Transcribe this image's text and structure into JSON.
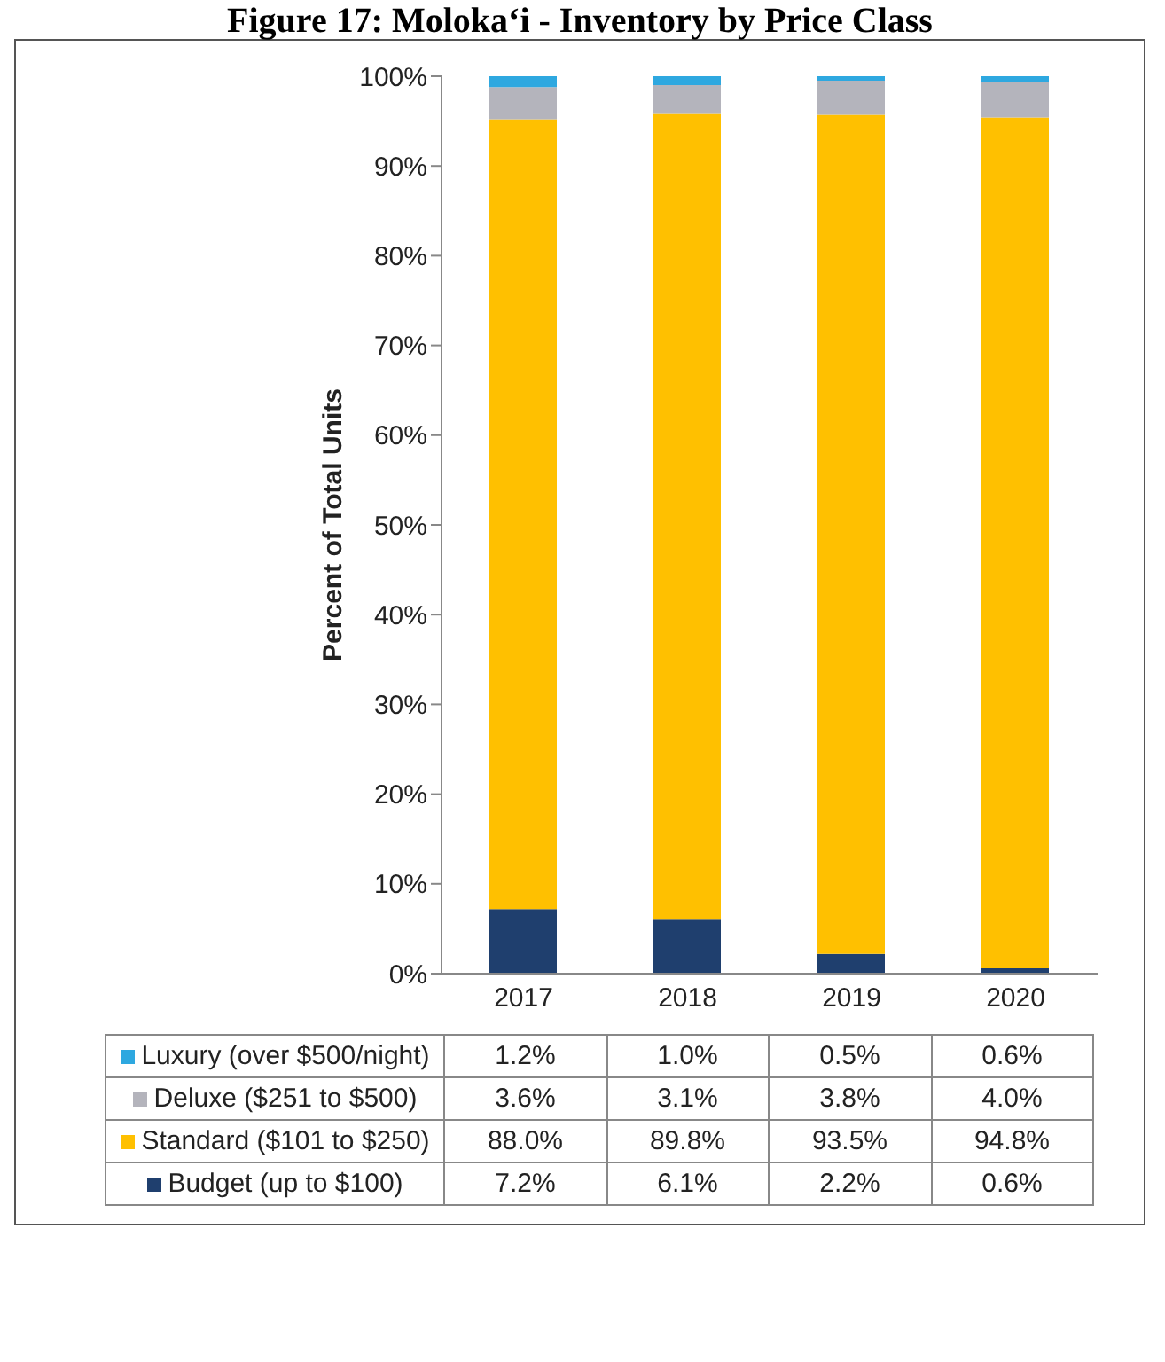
{
  "chart_data": {
    "type": "bar",
    "stacked": true,
    "title": "Figure 17: Molokaʻi - Inventory by Price Class",
    "ylabel": "Percent of Total Units",
    "categories": [
      "2017",
      "2018",
      "2019",
      "2020"
    ],
    "series": [
      {
        "name": "Budget (up to $100)",
        "color": "#1f3f6e",
        "values": [
          7.2,
          6.1,
          2.2,
          0.6
        ],
        "value_labels": [
          "7.2%",
          "6.1%",
          "2.2%",
          "0.6%"
        ]
      },
      {
        "name": "Standard ($101 to $250)",
        "color": "#ffc000",
        "values": [
          88.0,
          89.8,
          93.5,
          94.8
        ],
        "value_labels": [
          "88.0%",
          "89.8%",
          "93.5%",
          "94.8%"
        ]
      },
      {
        "name": "Deluxe ($251 to $500)",
        "color": "#b4b4bc",
        "values": [
          3.6,
          3.1,
          3.8,
          4.0
        ],
        "value_labels": [
          "3.6%",
          "3.1%",
          "3.8%",
          "4.0%"
        ]
      },
      {
        "name": "Luxury (over $500/night)",
        "color": "#2ea8e0",
        "values": [
          1.2,
          1.0,
          0.5,
          0.6
        ],
        "value_labels": [
          "1.2%",
          "1.0%",
          "0.5%",
          "0.6%"
        ]
      }
    ],
    "ylim": [
      0,
      100
    ],
    "yticks": [
      {
        "value": 0,
        "label": "0%"
      },
      {
        "value": 10,
        "label": "10%"
      },
      {
        "value": 20,
        "label": "20%"
      },
      {
        "value": 30,
        "label": "30%"
      },
      {
        "value": 40,
        "label": "40%"
      },
      {
        "value": 50,
        "label": "50%"
      },
      {
        "value": 60,
        "label": "60%"
      },
      {
        "value": 70,
        "label": "70%"
      },
      {
        "value": 80,
        "label": "80%"
      },
      {
        "value": 90,
        "label": "90%"
      },
      {
        "value": 100,
        "label": "100%"
      }
    ],
    "grid": false,
    "legend": "bottom"
  }
}
